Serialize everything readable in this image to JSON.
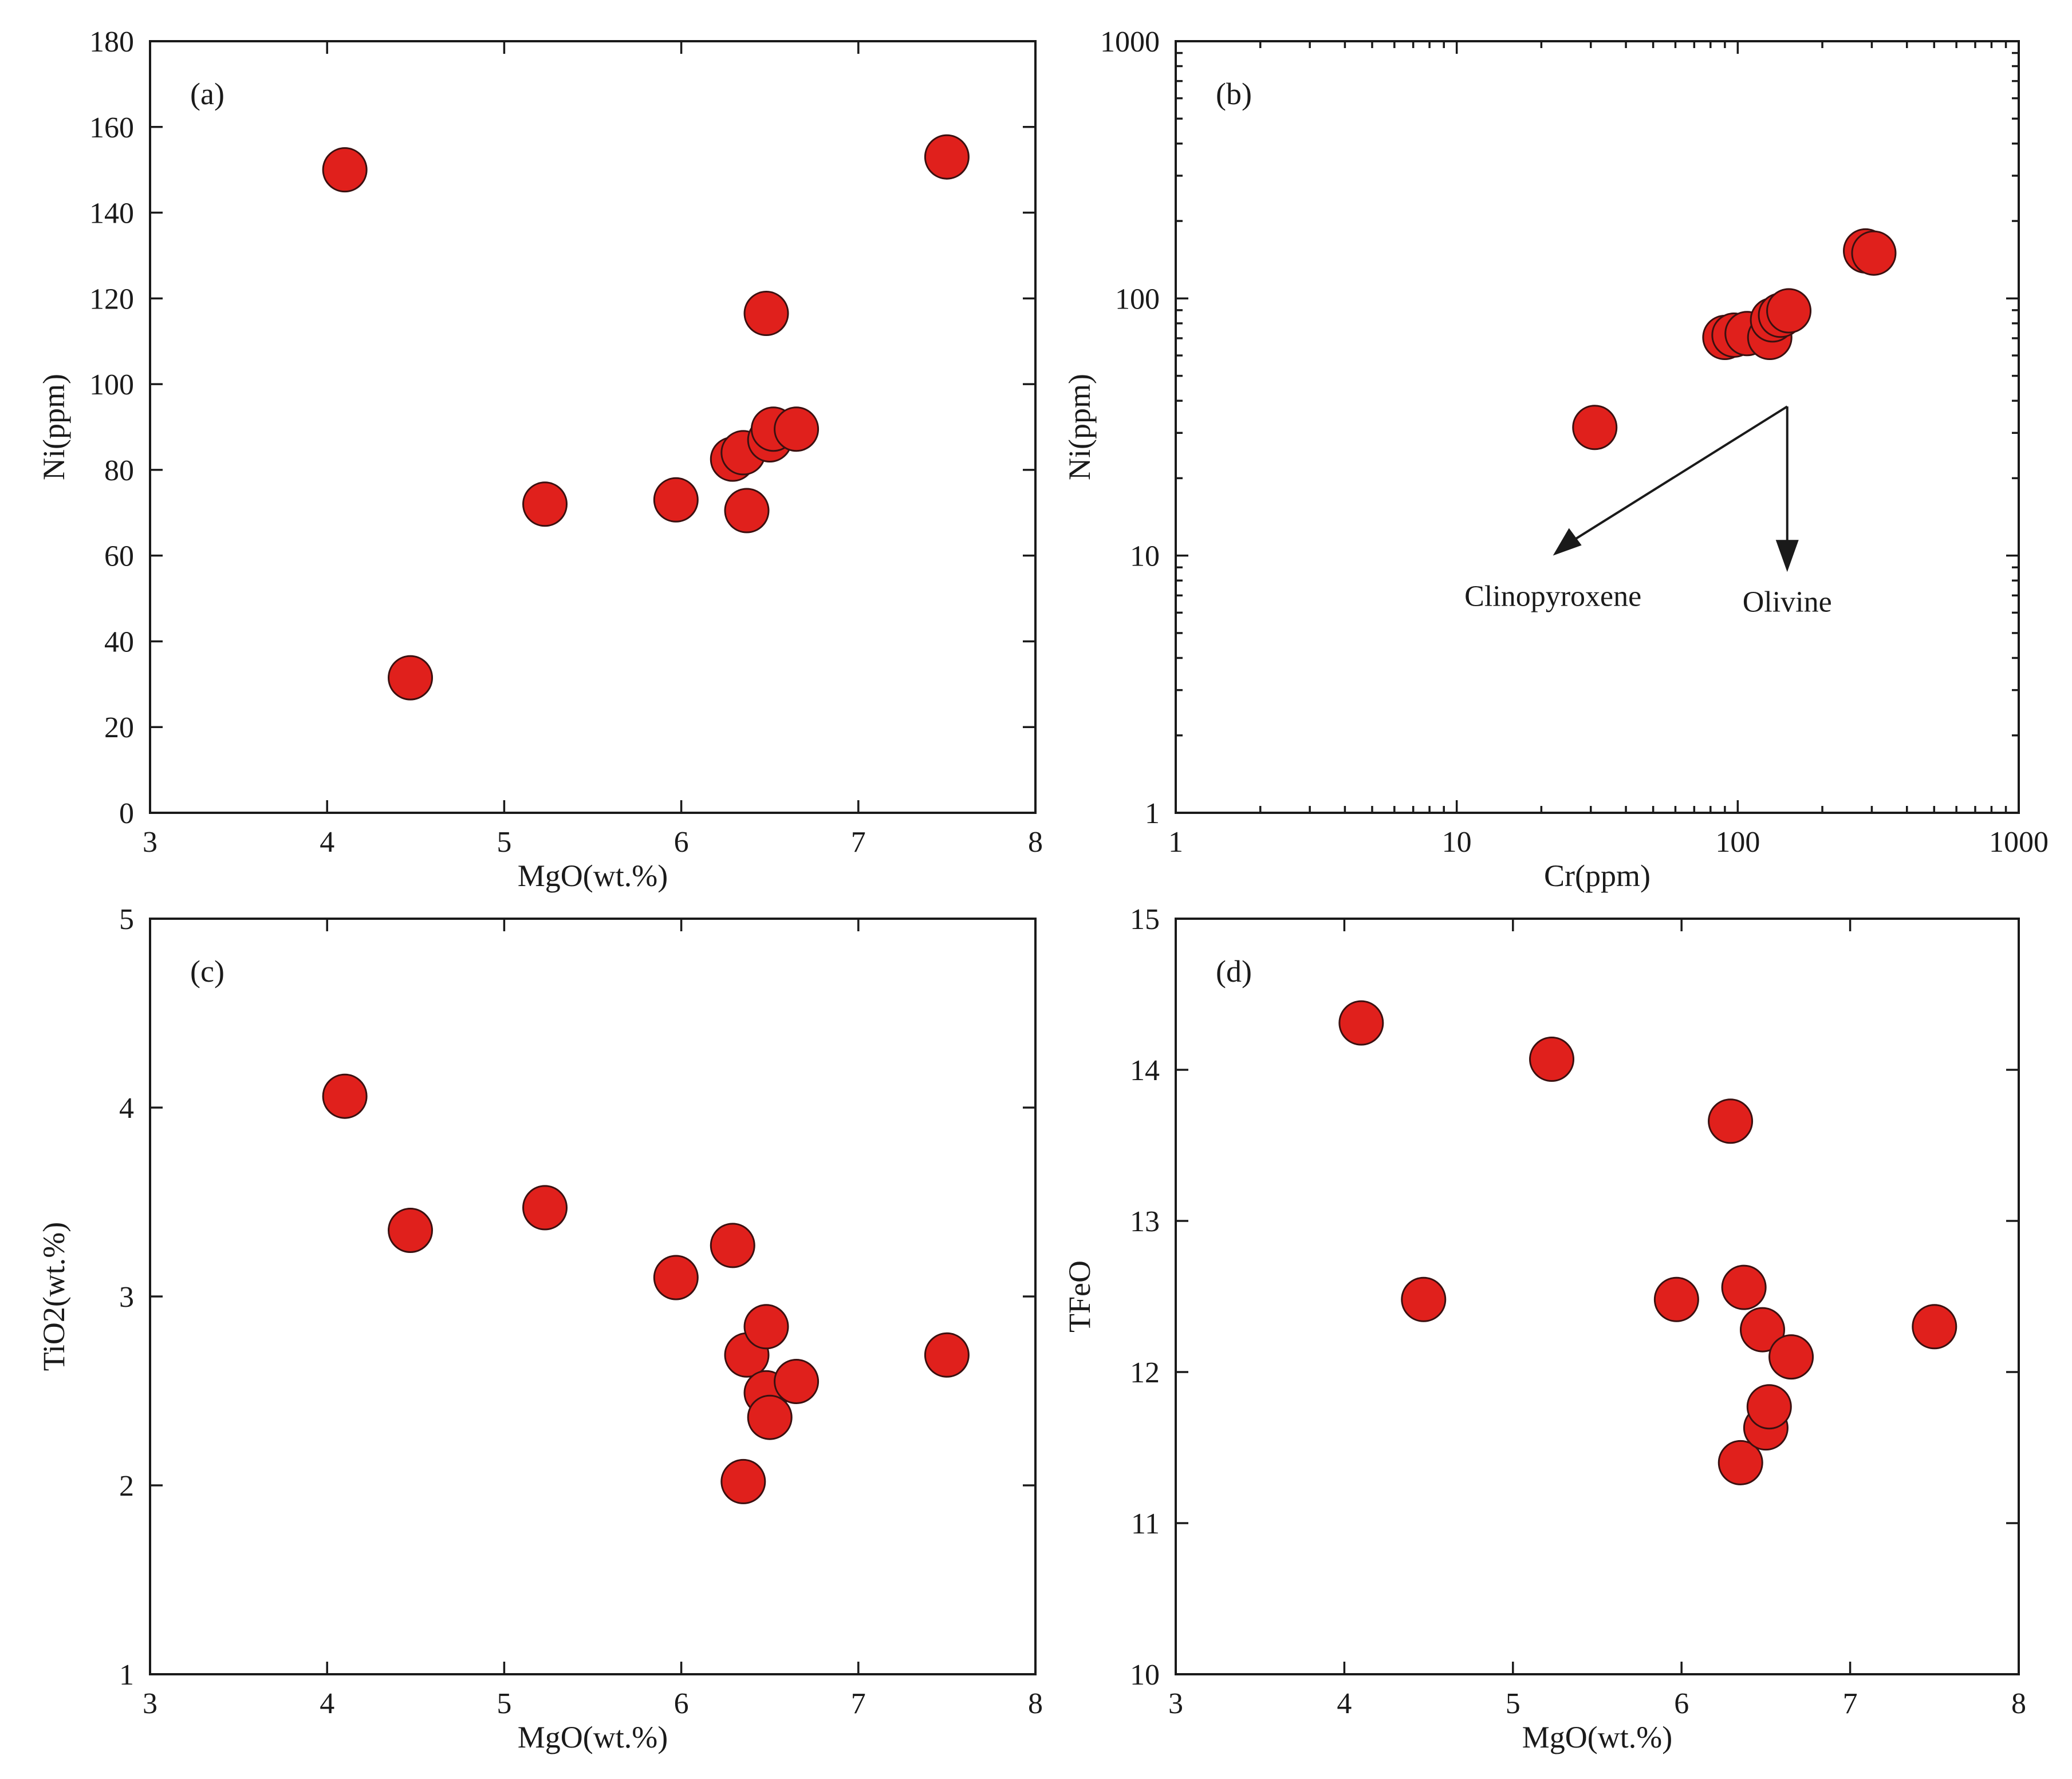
{
  "chart_data": [
    {
      "id": "a",
      "type": "scatter",
      "panel_label": "(a)",
      "xlabel": "MgO(wt.%)",
      "ylabel": "Ni(ppm)",
      "xscale": "linear",
      "yscale": "linear",
      "xlim": [
        3,
        8
      ],
      "ylim": [
        0,
        180
      ],
      "xticks": [
        3,
        4,
        5,
        6,
        7,
        8
      ],
      "yticks": [
        0,
        20,
        40,
        60,
        80,
        100,
        120,
        140,
        160,
        180
      ],
      "point_color": "#e0201c",
      "points": [
        {
          "x": 4.1,
          "y": 150
        },
        {
          "x": 4.47,
          "y": 31.5
        },
        {
          "x": 5.23,
          "y": 72
        },
        {
          "x": 5.97,
          "y": 73
        },
        {
          "x": 6.29,
          "y": 82.5
        },
        {
          "x": 6.35,
          "y": 84
        },
        {
          "x": 6.37,
          "y": 70.5
        },
        {
          "x": 6.48,
          "y": 116.5
        },
        {
          "x": 6.5,
          "y": 87
        },
        {
          "x": 6.52,
          "y": 89.5
        },
        {
          "x": 6.65,
          "y": 89.5
        },
        {
          "x": 7.5,
          "y": 153
        }
      ]
    },
    {
      "id": "b",
      "type": "scatter",
      "panel_label": "(b)",
      "xlabel": "Cr(ppm)",
      "ylabel": "Ni(ppm)",
      "xscale": "log",
      "yscale": "log",
      "xlim": [
        1,
        1000
      ],
      "ylim": [
        1,
        1000
      ],
      "xticks": [
        1,
        10,
        100,
        1000
      ],
      "yticks": [
        1,
        10,
        100,
        1000
      ],
      "point_color": "#e0201c",
      "points": [
        {
          "x": 31,
          "y": 31.5
        },
        {
          "x": 90,
          "y": 70.5
        },
        {
          "x": 97,
          "y": 72
        },
        {
          "x": 108,
          "y": 73
        },
        {
          "x": 130,
          "y": 70.5
        },
        {
          "x": 133,
          "y": 82.5
        },
        {
          "x": 142,
          "y": 86
        },
        {
          "x": 152,
          "y": 89.5
        },
        {
          "x": 285,
          "y": 153
        },
        {
          "x": 305,
          "y": 150
        }
      ],
      "annotations": [
        {
          "text": "Clinopyroxene"
        },
        {
          "text": "Olivine"
        }
      ]
    },
    {
      "id": "c",
      "type": "scatter",
      "panel_label": "(c)",
      "xlabel": "MgO(wt.%)",
      "ylabel": "TiO2(wt.%)",
      "xscale": "linear",
      "yscale": "linear",
      "xlim": [
        3,
        8
      ],
      "ylim": [
        1,
        5
      ],
      "xticks": [
        3,
        4,
        5,
        6,
        7,
        8
      ],
      "yticks": [
        1,
        2,
        3,
        4,
        5
      ],
      "point_color": "#e0201c",
      "points": [
        {
          "x": 4.1,
          "y": 4.06
        },
        {
          "x": 4.47,
          "y": 3.35
        },
        {
          "x": 5.23,
          "y": 3.47
        },
        {
          "x": 5.97,
          "y": 3.1
        },
        {
          "x": 6.29,
          "y": 3.27
        },
        {
          "x": 6.35,
          "y": 2.02
        },
        {
          "x": 6.37,
          "y": 2.69
        },
        {
          "x": 6.48,
          "y": 2.84
        },
        {
          "x": 6.48,
          "y": 2.49
        },
        {
          "x": 6.5,
          "y": 2.36
        },
        {
          "x": 6.65,
          "y": 2.55
        },
        {
          "x": 7.5,
          "y": 2.69
        }
      ]
    },
    {
      "id": "d",
      "type": "scatter",
      "panel_label": "(d)",
      "xlabel": "MgO(wt.%)",
      "ylabel": "TFeO",
      "xscale": "linear",
      "yscale": "linear",
      "xlim": [
        3,
        8
      ],
      "ylim": [
        10,
        15
      ],
      "xticks": [
        3,
        4,
        5,
        6,
        7,
        8
      ],
      "yticks": [
        10,
        11,
        12,
        13,
        14,
        15
      ],
      "point_color": "#e0201c",
      "points": [
        {
          "x": 4.1,
          "y": 14.31
        },
        {
          "x": 4.47,
          "y": 12.48
        },
        {
          "x": 5.23,
          "y": 14.07
        },
        {
          "x": 5.97,
          "y": 12.48
        },
        {
          "x": 6.29,
          "y": 13.66
        },
        {
          "x": 6.35,
          "y": 11.4
        },
        {
          "x": 6.37,
          "y": 12.56
        },
        {
          "x": 6.48,
          "y": 12.28
        },
        {
          "x": 6.5,
          "y": 11.63
        },
        {
          "x": 6.52,
          "y": 11.77
        },
        {
          "x": 6.65,
          "y": 12.1
        },
        {
          "x": 7.5,
          "y": 12.3
        }
      ]
    }
  ]
}
